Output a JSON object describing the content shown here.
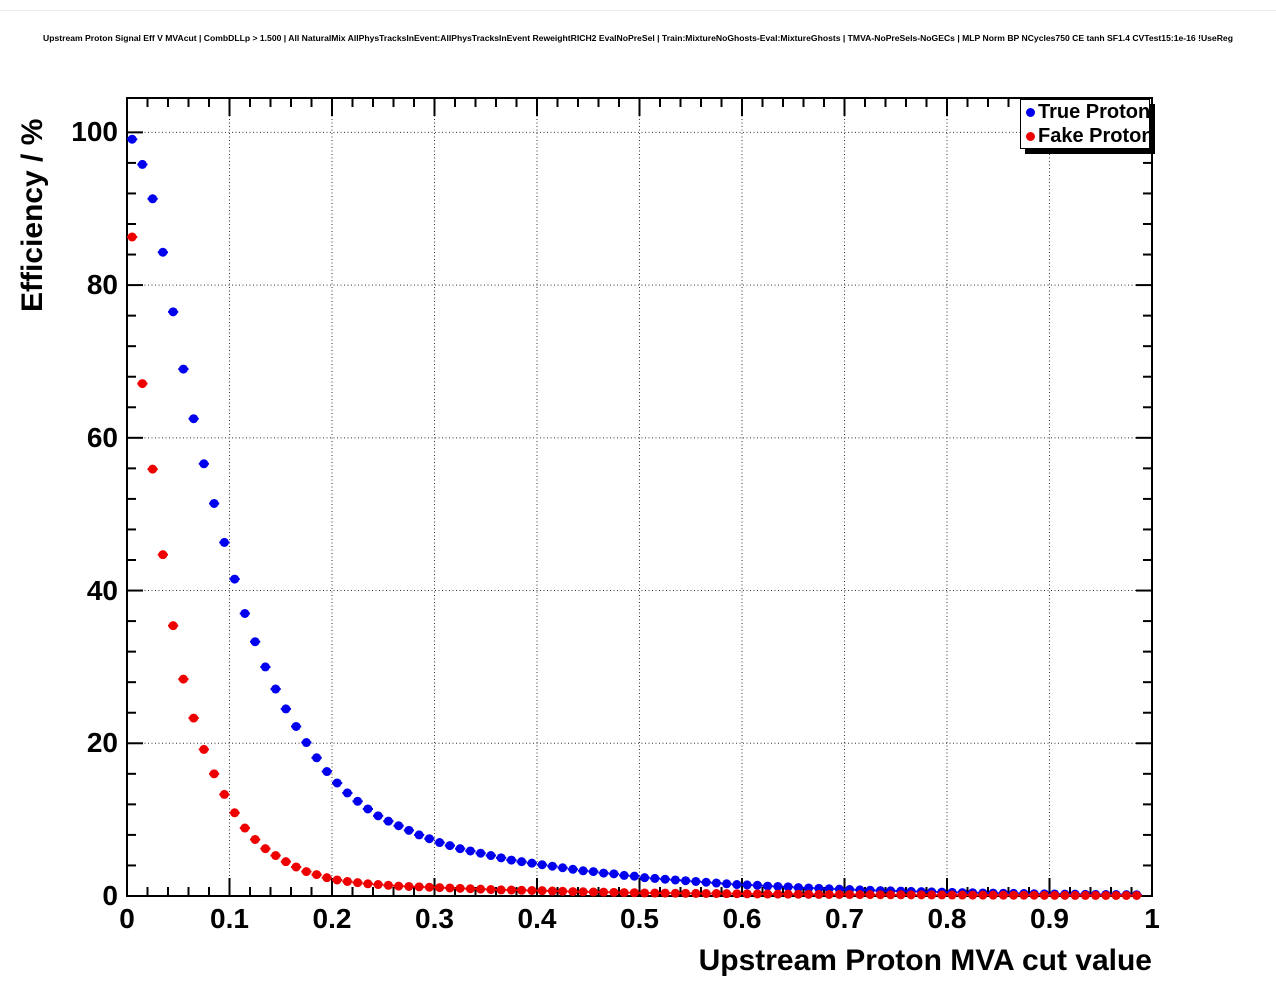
{
  "page": {
    "background": "#ffffff"
  },
  "legend": {
    "items": [
      {
        "label": "True Proton",
        "color": "#0000ee",
        "marker": "filled-circle"
      },
      {
        "label": "Fake Proton",
        "color": "#ee0000",
        "marker": "filled-circle"
      }
    ]
  },
  "chart_data": {
    "type": "scatter",
    "title": "Upstream Proton Signal Eff V MVAcut | CombDLLp > 1.500 | All NaturalMix AllPhysTracksInEvent:AllPhysTracksInEvent ReweightRICH2 EvalNoPreSel | Train:MixtureNoGhosts-Eval:MixtureGhosts | TMVA-NoPreSels-NoGECs | MLP Norm BP NCycles750 CE tanh SF1.4 CVTest15:1e-16 !UseReg",
    "xlabel": "Upstream Proton MVA cut value",
    "ylabel": "Efficiency / %",
    "xlim": [
      0,
      1
    ],
    "ylim": [
      0,
      104.5
    ],
    "grid": true,
    "grid_style": "dotted",
    "legend_position": "top-right",
    "x_tick_values": [
      0,
      0.1,
      0.2,
      0.3,
      0.4,
      0.5,
      0.6,
      0.7,
      0.8,
      0.9,
      1
    ],
    "x_tick_labels": [
      "0",
      "0.1",
      "0.2",
      "0.3",
      "0.4",
      "0.5",
      "0.6",
      "0.7",
      "0.8",
      "0.9",
      "1"
    ],
    "x_minor_tick_step": 0.02,
    "y_tick_values": [
      0,
      20,
      40,
      60,
      80,
      100
    ],
    "y_tick_labels": [
      "0",
      "20",
      "40",
      "60",
      "80",
      "100"
    ],
    "y_minor_tick_step": 4,
    "x_error": 0.005,
    "series": [
      {
        "name": "True Proton",
        "color": "#0000ee",
        "x": [
          0.005,
          0.015,
          0.025,
          0.035,
          0.045,
          0.055,
          0.065,
          0.075,
          0.085,
          0.095,
          0.105,
          0.115,
          0.125,
          0.135,
          0.145,
          0.155,
          0.165,
          0.175,
          0.185,
          0.195,
          0.205,
          0.215,
          0.225,
          0.235,
          0.245,
          0.255,
          0.265,
          0.275,
          0.285,
          0.295,
          0.305,
          0.315,
          0.325,
          0.335,
          0.345,
          0.355,
          0.365,
          0.375,
          0.385,
          0.395,
          0.405,
          0.415,
          0.425,
          0.435,
          0.445,
          0.455,
          0.465,
          0.475,
          0.485,
          0.495,
          0.505,
          0.515,
          0.525,
          0.535,
          0.545,
          0.555,
          0.565,
          0.575,
          0.585,
          0.595,
          0.605,
          0.615,
          0.625,
          0.635,
          0.645,
          0.655,
          0.665,
          0.675,
          0.685,
          0.695,
          0.705,
          0.715,
          0.725,
          0.735,
          0.745,
          0.755,
          0.765,
          0.775,
          0.785,
          0.795,
          0.805,
          0.815,
          0.825,
          0.835,
          0.845,
          0.855,
          0.865,
          0.875,
          0.885,
          0.895,
          0.905,
          0.915,
          0.925,
          0.935,
          0.945,
          0.955,
          0.965,
          0.975,
          0.985
        ],
        "y": [
          99.1,
          95.8,
          91.3,
          84.3,
          76.5,
          69.0,
          62.5,
          56.6,
          51.4,
          46.3,
          41.5,
          37.0,
          33.3,
          30.0,
          27.1,
          24.5,
          22.2,
          20.1,
          18.1,
          16.3,
          14.8,
          13.5,
          12.4,
          11.4,
          10.5,
          9.8,
          9.2,
          8.6,
          8.0,
          7.5,
          7.0,
          6.6,
          6.2,
          5.9,
          5.6,
          5.3,
          5.0,
          4.7,
          4.5,
          4.3,
          4.1,
          3.9,
          3.7,
          3.5,
          3.3,
          3.2,
          3.0,
          2.9,
          2.7,
          2.6,
          2.4,
          2.3,
          2.2,
          2.1,
          2.0,
          1.9,
          1.8,
          1.7,
          1.6,
          1.5,
          1.45,
          1.4,
          1.3,
          1.25,
          1.2,
          1.1,
          1.05,
          1.0,
          0.95,
          0.9,
          0.85,
          0.8,
          0.75,
          0.7,
          0.67,
          0.64,
          0.6,
          0.57,
          0.54,
          0.51,
          0.48,
          0.45,
          0.43,
          0.4,
          0.38,
          0.36,
          0.34,
          0.32,
          0.3,
          0.28,
          0.27,
          0.25,
          0.24,
          0.22,
          0.21,
          0.2,
          0.19,
          0.18,
          0.17
        ]
      },
      {
        "name": "Fake Proton",
        "color": "#ee0000",
        "x": [
          0.005,
          0.015,
          0.025,
          0.035,
          0.045,
          0.055,
          0.065,
          0.075,
          0.085,
          0.095,
          0.105,
          0.115,
          0.125,
          0.135,
          0.145,
          0.155,
          0.165,
          0.175,
          0.185,
          0.195,
          0.205,
          0.215,
          0.225,
          0.235,
          0.245,
          0.255,
          0.265,
          0.275,
          0.285,
          0.295,
          0.305,
          0.315,
          0.325,
          0.335,
          0.345,
          0.355,
          0.365,
          0.375,
          0.385,
          0.395,
          0.405,
          0.415,
          0.425,
          0.435,
          0.445,
          0.455,
          0.465,
          0.475,
          0.485,
          0.495,
          0.505,
          0.515,
          0.525,
          0.535,
          0.545,
          0.555,
          0.565,
          0.575,
          0.585,
          0.595,
          0.605,
          0.615,
          0.625,
          0.635,
          0.645,
          0.655,
          0.665,
          0.675,
          0.685,
          0.695,
          0.705,
          0.715,
          0.725,
          0.735,
          0.745,
          0.755,
          0.765,
          0.775,
          0.785,
          0.795,
          0.805,
          0.815,
          0.825,
          0.835,
          0.845,
          0.855,
          0.865,
          0.875,
          0.885,
          0.895,
          0.905,
          0.915,
          0.925,
          0.935,
          0.945,
          0.955,
          0.965,
          0.975,
          0.985
        ],
        "y": [
          86.3,
          67.1,
          55.9,
          44.7,
          35.4,
          28.4,
          23.3,
          19.2,
          16.0,
          13.3,
          10.9,
          8.9,
          7.4,
          6.2,
          5.3,
          4.5,
          3.8,
          3.2,
          2.8,
          2.4,
          2.1,
          1.9,
          1.75,
          1.6,
          1.5,
          1.4,
          1.3,
          1.25,
          1.2,
          1.15,
          1.1,
          1.05,
          1.0,
          0.95,
          0.9,
          0.85,
          0.8,
          0.78,
          0.75,
          0.72,
          0.7,
          0.65,
          0.62,
          0.58,
          0.55,
          0.52,
          0.5,
          0.48,
          0.45,
          0.43,
          0.4,
          0.39,
          0.38,
          0.36,
          0.35,
          0.34,
          0.33,
          0.32,
          0.31,
          0.3,
          0.28,
          0.27,
          0.26,
          0.25,
          0.24,
          0.23,
          0.22,
          0.21,
          0.2,
          0.2,
          0.19,
          0.18,
          0.18,
          0.17,
          0.16,
          0.16,
          0.15,
          0.15,
          0.14,
          0.14,
          0.13,
          0.13,
          0.12,
          0.12,
          0.11,
          0.11,
          0.1,
          0.1,
          0.1,
          0.09,
          0.09,
          0.09,
          0.08,
          0.08,
          0.08,
          0.07,
          0.07,
          0.07,
          0.07
        ]
      }
    ]
  }
}
